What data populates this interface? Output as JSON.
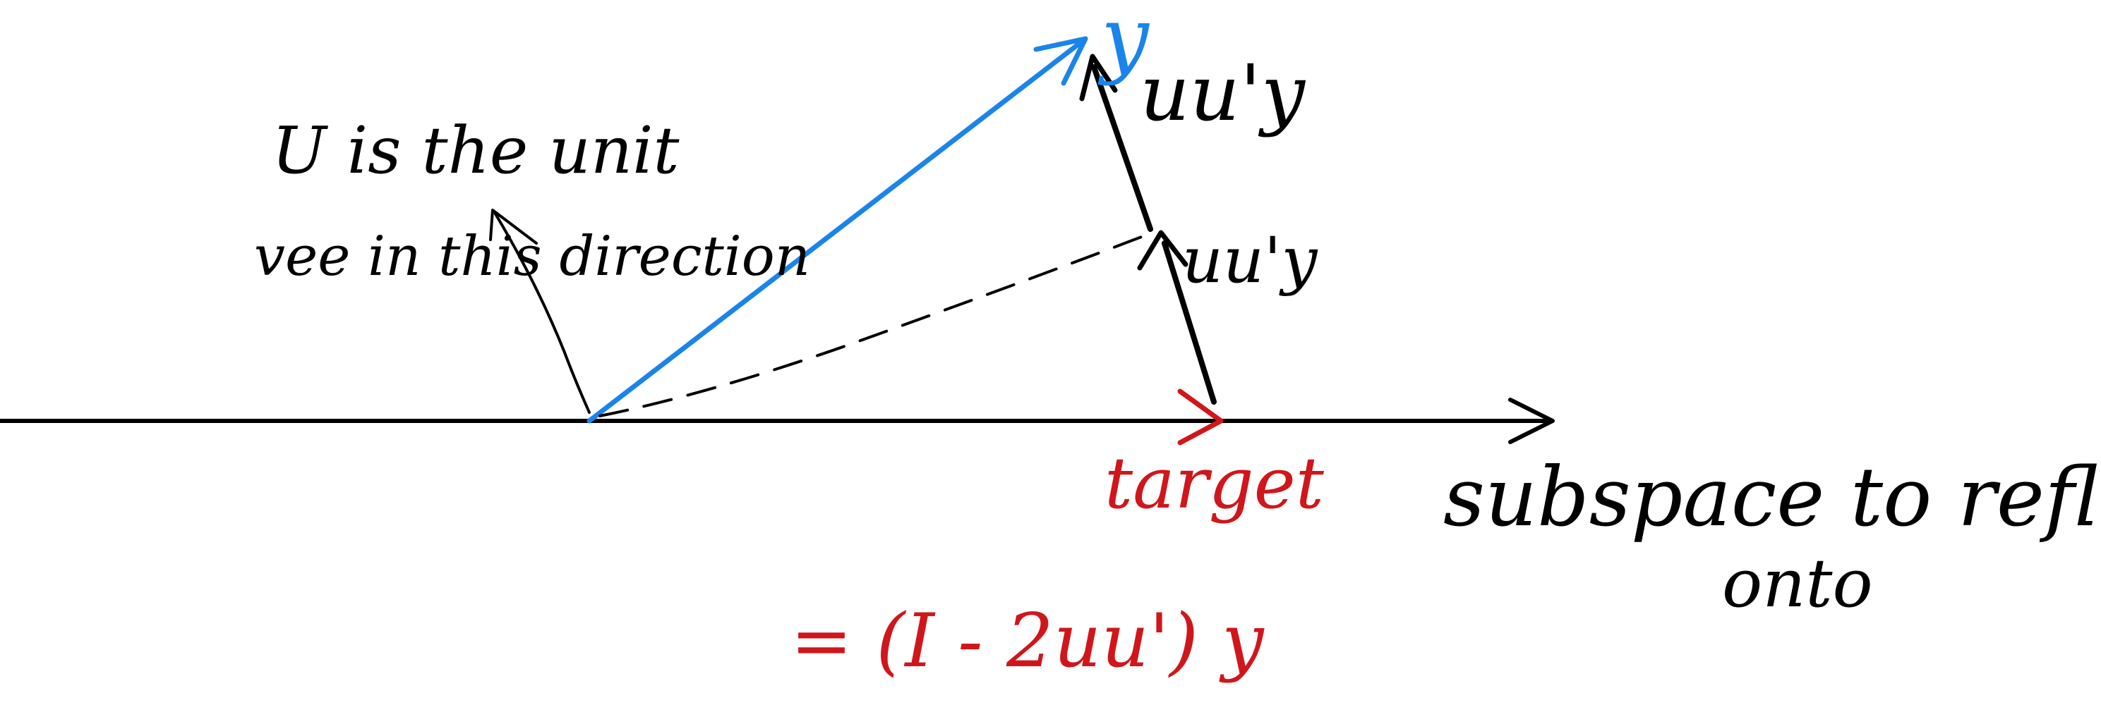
{
  "colors": {
    "ink": "#000000",
    "blue": "#1a84ea",
    "red": "#d0161b"
  },
  "labels": {
    "u_note_line1": "U is the unit",
    "u_note_line2": "vee in this direction",
    "y": "y",
    "uuy_upper": "uu'y",
    "uuy_lower": "uu'y",
    "target": "target",
    "formula": "= (I - 2uu') y",
    "subspace_line1": "subspace to reflect",
    "subspace_line2": "onto"
  }
}
